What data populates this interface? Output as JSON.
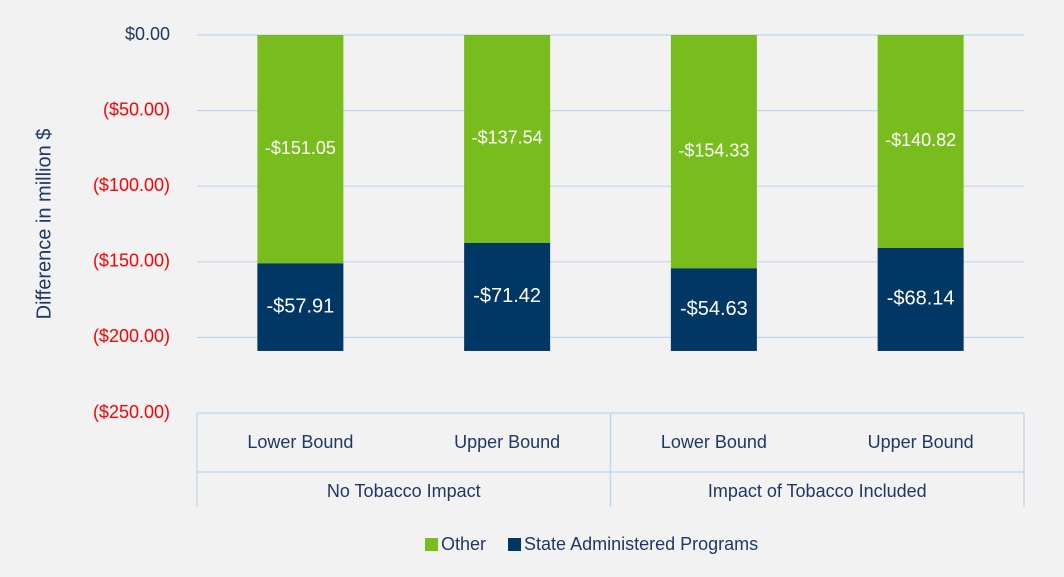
{
  "chart_data": {
    "type": "stacked_bar",
    "y_label": "Difference in million $",
    "groups": [
      {
        "name": "No Tobacco Impact",
        "categories": [
          "Lower Bound",
          "Upper Bound"
        ]
      },
      {
        "name": "Impact of Tobacco Included",
        "categories": [
          "Lower Bound",
          "Upper Bound"
        ]
      }
    ],
    "series": [
      {
        "name": "Other",
        "color": "#78bc1e",
        "values": [
          -151.05,
          -137.54,
          -154.33,
          -140.82
        ],
        "value_labels": [
          "-$151.05",
          "-$137.54",
          "-$154.33",
          "-$140.82"
        ]
      },
      {
        "name": "State Administered Programs",
        "color": "#003764",
        "values": [
          -57.91,
          -71.42,
          -54.63,
          -68.14
        ],
        "value_labels": [
          "-$57.91",
          "-$71.42",
          "-$54.63",
          "-$68.14"
        ]
      }
    ],
    "ylim": [
      -250,
      0
    ],
    "yticks": [
      {
        "value": 0,
        "label": "$0.00"
      },
      {
        "value": -50,
        "label": "($50.00)"
      },
      {
        "value": -100,
        "label": "($100.00)"
      },
      {
        "value": -150,
        "label": "($150.00)"
      },
      {
        "value": -200,
        "label": "($200.00)"
      },
      {
        "value": -250,
        "label": "($250.00)"
      }
    ],
    "tick_color": "#1f3864",
    "negative_tick_color": "#ff0000",
    "grid": true,
    "legend": "bottom"
  }
}
